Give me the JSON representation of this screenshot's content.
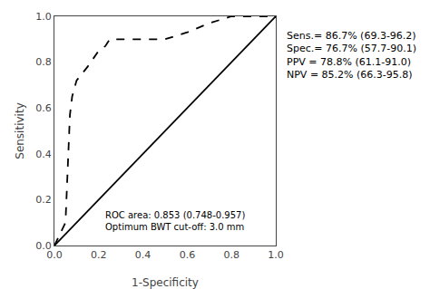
{
  "chart_data": {
    "type": "line",
    "xlabel": "1-Specificity",
    "ylabel": "Sensitivity",
    "series": [
      {
        "x": [
          0.0,
          1.0
        ],
        "values": [
          0.0,
          1.0
        ],
        "color": "#000000",
        "line_style": "solid"
      },
      {
        "x": [
          0.0,
          0.05,
          0.07,
          0.08,
          0.1,
          0.15,
          0.2,
          0.23,
          0.25,
          0.3,
          0.4,
          0.5,
          0.6,
          0.65,
          0.7,
          0.8,
          0.9,
          1.0
        ],
        "values": [
          0.0,
          0.1,
          0.57,
          0.65,
          0.72,
          0.78,
          0.85,
          0.87,
          0.9,
          0.9,
          0.9,
          0.9,
          0.93,
          0.95,
          0.97,
          1.0,
          1.0,
          1.0
        ],
        "color": "#000000",
        "line_style": "dashed"
      }
    ],
    "xlim": [
      0.0,
      1.0
    ],
    "ylim": [
      0.0,
      1.0
    ],
    "xticks": [
      {
        "value": 0.0,
        "label": "0.0"
      },
      0.2,
      0.4,
      0.6,
      0.8,
      {
        "value": 1.0,
        "label": "1.0"
      }
    ],
    "yticks": [
      {
        "value": 0.0,
        "label": "0.0"
      },
      0.2,
      0.4,
      0.6,
      0.8,
      {
        "value": 1.0,
        "label": "1.0"
      }
    ],
    "grid": false,
    "annotations": [
      "ROC area: 0.853 (0.748-0.957)\nOptimum BWT cut-off: 3.0 mm",
      "Sens.= 86.7% (69.3-96.2)\nSpec.= 76.7% (57.7-90.1)\nPPV = 78.8% (61.1-91.0)\nNPV = 85.2% (66.3-95.8)"
    ]
  }
}
